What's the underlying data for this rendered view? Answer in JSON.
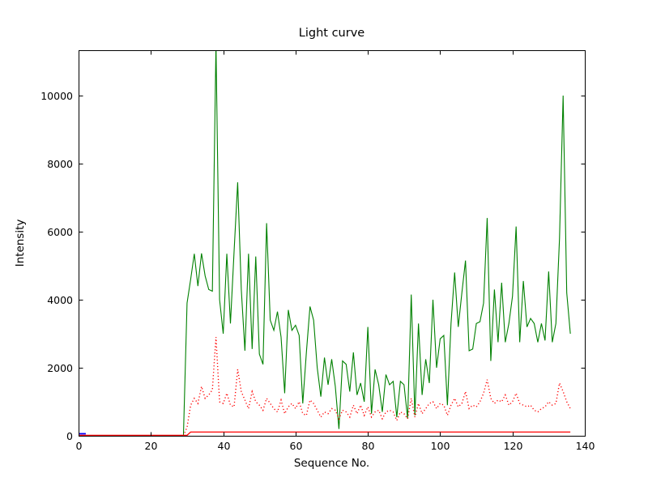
{
  "chart_data": {
    "type": "line",
    "title": "Light curve",
    "xlabel": "Sequence No.",
    "ylabel": "Intensity",
    "xlim": [
      0,
      140
    ],
    "ylim": [
      0,
      11333
    ],
    "x_ticks": [
      0,
      20,
      40,
      60,
      80,
      100,
      120,
      140
    ],
    "y_ticks": [
      0,
      2000,
      4000,
      6000,
      8000,
      10000
    ],
    "grid": false,
    "legend": false,
    "frame_color": "#000000",
    "background": "#ffffff",
    "series": [
      {
        "name": "green-line",
        "color": "#008000",
        "line_style": "solid",
        "line_width": 1.1,
        "x_start": 29,
        "x_step": 1,
        "values": [
          0,
          3900,
          4600,
          5350,
          4400,
          5360,
          4700,
          4300,
          4250,
          11500,
          4000,
          3000,
          5350,
          3300,
          5400,
          7450,
          4300,
          2500,
          5350,
          2550,
          5270,
          2400,
          2100,
          6250,
          3400,
          3100,
          3650,
          2900,
          1250,
          3700,
          3100,
          3250,
          2950,
          950,
          2450,
          3800,
          3400,
          2000,
          1150,
          2300,
          1500,
          2250,
          1450,
          200,
          2200,
          2100,
          1300,
          2450,
          1200,
          1550,
          1000,
          3200,
          650,
          1950,
          1500,
          700,
          1800,
          1500,
          1600,
          550,
          1600,
          1500,
          500,
          4150,
          600,
          3300,
          1200,
          2250,
          1550,
          4000,
          2000,
          2850,
          2950,
          900,
          3300,
          4800,
          3200,
          4200,
          5150,
          2500,
          2550,
          3300,
          3350,
          3900,
          6400,
          2200,
          4300,
          2750,
          4500,
          2750,
          3300,
          4100,
          6150,
          2750,
          4550,
          3200,
          3450,
          3300,
          2750,
          3300,
          2800,
          4830,
          2750,
          3300,
          5800,
          10000,
          4200,
          3000
        ]
      },
      {
        "name": "red-dotted-line",
        "color": "#ff0000",
        "line_style": "dotted",
        "line_width": 1.4,
        "x_start": 29,
        "x_step": 1,
        "values": [
          0,
          250,
          900,
          1100,
          950,
          1450,
          1100,
          1200,
          1350,
          2900,
          1000,
          950,
          1250,
          900,
          850,
          1950,
          1300,
          1050,
          800,
          1300,
          1000,
          900,
          750,
          1100,
          950,
          800,
          700,
          1050,
          650,
          850,
          950,
          800,
          1000,
          650,
          600,
          1050,
          950,
          750,
          550,
          700,
          650,
          800,
          750,
          500,
          750,
          700,
          550,
          900,
          650,
          900,
          600,
          850,
          550,
          700,
          750,
          500,
          700,
          750,
          700,
          450,
          700,
          650,
          500,
          1100,
          550,
          950,
          650,
          800,
          950,
          1000,
          800,
          950,
          900,
          600,
          900,
          1100,
          850,
          950,
          1300,
          800,
          900,
          850,
          1000,
          1250,
          1650,
          1100,
          950,
          1050,
          1000,
          1200,
          900,
          1000,
          1250,
          950,
          900,
          850,
          900,
          750,
          700,
          800,
          850,
          1000,
          900,
          950,
          1550,
          1300,
          1000,
          800
        ]
      },
      {
        "name": "red-flat-line",
        "color": "#ff0000",
        "line_style": "solid",
        "line_width": 1.3,
        "x": [
          0,
          30,
          31,
          136
        ],
        "y": [
          15,
          15,
          110,
          110
        ]
      },
      {
        "name": "blue-segment",
        "color": "#0000ff",
        "line_style": "solid",
        "line_width": 1.8,
        "x": [
          0,
          1,
          2
        ],
        "y": [
          60,
          60,
          60
        ]
      }
    ]
  }
}
